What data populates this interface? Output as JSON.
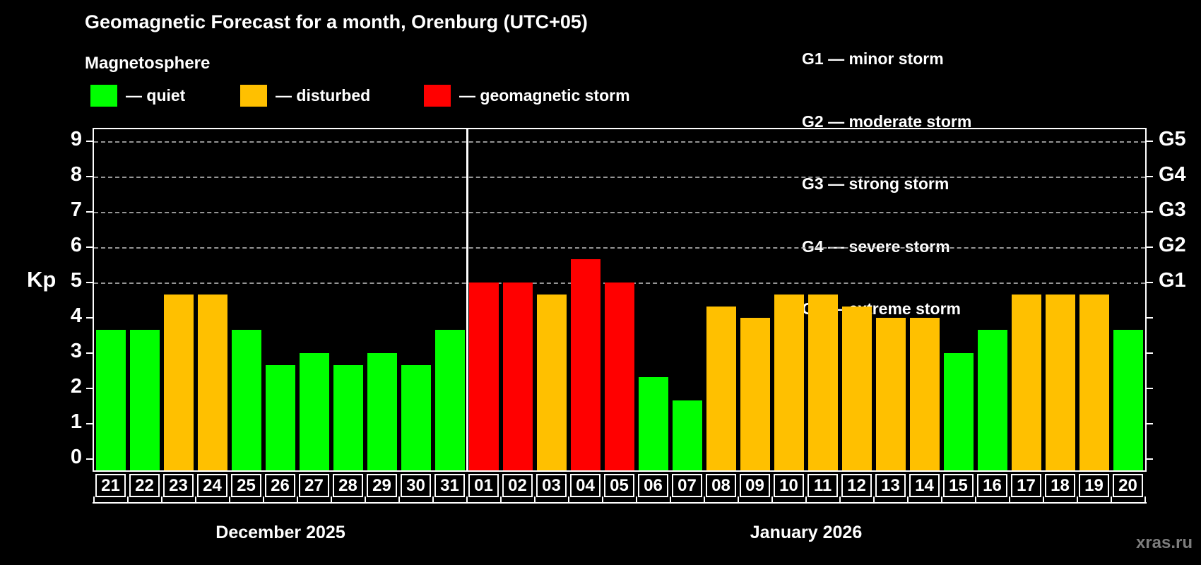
{
  "title": "Geomagnetic Forecast for a month, Orenburg (UTC+05)",
  "subtitle": "Magnetosphere",
  "watermark": "xras.ru",
  "legend": {
    "items": [
      {
        "name": "quiet",
        "label": "— quiet",
        "color": "#00ff00"
      },
      {
        "name": "disturbed",
        "label": "— disturbed",
        "color": "#ffc000"
      },
      {
        "name": "storm",
        "label": "— geomagnetic storm",
        "color": "#ff0000"
      }
    ]
  },
  "g_legend": [
    "G1 — minor storm",
    "G2 — moderate storm",
    "G3 — strong storm",
    "G4 — severe storm",
    "G5 — extreme storm"
  ],
  "chart_data": {
    "type": "bar",
    "ylabel": "Kp",
    "ylim": [
      0,
      9
    ],
    "kp_ticks": [
      0,
      1,
      2,
      3,
      4,
      5,
      6,
      7,
      8,
      9
    ],
    "gridlines_at_kp": [
      5,
      6,
      7,
      8,
      9
    ],
    "right_axis_labels": [
      {
        "kp": 5,
        "label": "G1"
      },
      {
        "kp": 6,
        "label": "G2"
      },
      {
        "kp": 7,
        "label": "G3"
      },
      {
        "kp": 8,
        "label": "G4"
      },
      {
        "kp": 9,
        "label": "G5"
      }
    ],
    "level_colors": {
      "quiet": "#00ff00",
      "disturbed": "#ffc000",
      "storm": "#ff0000"
    },
    "months": [
      {
        "label": "December 2025",
        "days": [
          {
            "date": "21",
            "kp": 3.67,
            "level": "quiet"
          },
          {
            "date": "22",
            "kp": 3.67,
            "level": "quiet"
          },
          {
            "date": "23",
            "kp": 4.67,
            "level": "disturbed"
          },
          {
            "date": "24",
            "kp": 4.67,
            "level": "disturbed"
          },
          {
            "date": "25",
            "kp": 3.67,
            "level": "quiet"
          },
          {
            "date": "26",
            "kp": 2.67,
            "level": "quiet"
          },
          {
            "date": "27",
            "kp": 3.0,
            "level": "quiet"
          },
          {
            "date": "28",
            "kp": 2.67,
            "level": "quiet"
          },
          {
            "date": "29",
            "kp": 3.0,
            "level": "quiet"
          },
          {
            "date": "30",
            "kp": 2.67,
            "level": "quiet"
          },
          {
            "date": "31",
            "kp": 3.67,
            "level": "quiet"
          }
        ]
      },
      {
        "label": "January 2026",
        "days": [
          {
            "date": "01",
            "kp": 5.0,
            "level": "storm"
          },
          {
            "date": "02",
            "kp": 5.0,
            "level": "storm"
          },
          {
            "date": "03",
            "kp": 4.67,
            "level": "disturbed"
          },
          {
            "date": "04",
            "kp": 5.67,
            "level": "storm"
          },
          {
            "date": "05",
            "kp": 5.0,
            "level": "storm"
          },
          {
            "date": "06",
            "kp": 2.33,
            "level": "quiet"
          },
          {
            "date": "07",
            "kp": 1.67,
            "level": "quiet"
          },
          {
            "date": "08",
            "kp": 4.33,
            "level": "disturbed"
          },
          {
            "date": "09",
            "kp": 4.0,
            "level": "disturbed"
          },
          {
            "date": "10",
            "kp": 4.67,
            "level": "disturbed"
          },
          {
            "date": "11",
            "kp": 4.67,
            "level": "disturbed"
          },
          {
            "date": "12",
            "kp": 4.33,
            "level": "disturbed"
          },
          {
            "date": "13",
            "kp": 4.0,
            "level": "disturbed"
          },
          {
            "date": "14",
            "kp": 4.0,
            "level": "disturbed"
          },
          {
            "date": "15",
            "kp": 3.0,
            "level": "quiet"
          },
          {
            "date": "16",
            "kp": 3.67,
            "level": "quiet"
          },
          {
            "date": "17",
            "kp": 4.67,
            "level": "disturbed"
          },
          {
            "date": "18",
            "kp": 4.67,
            "level": "disturbed"
          },
          {
            "date": "19",
            "kp": 4.67,
            "level": "disturbed"
          },
          {
            "date": "20",
            "kp": 3.67,
            "level": "quiet"
          }
        ]
      }
    ]
  }
}
